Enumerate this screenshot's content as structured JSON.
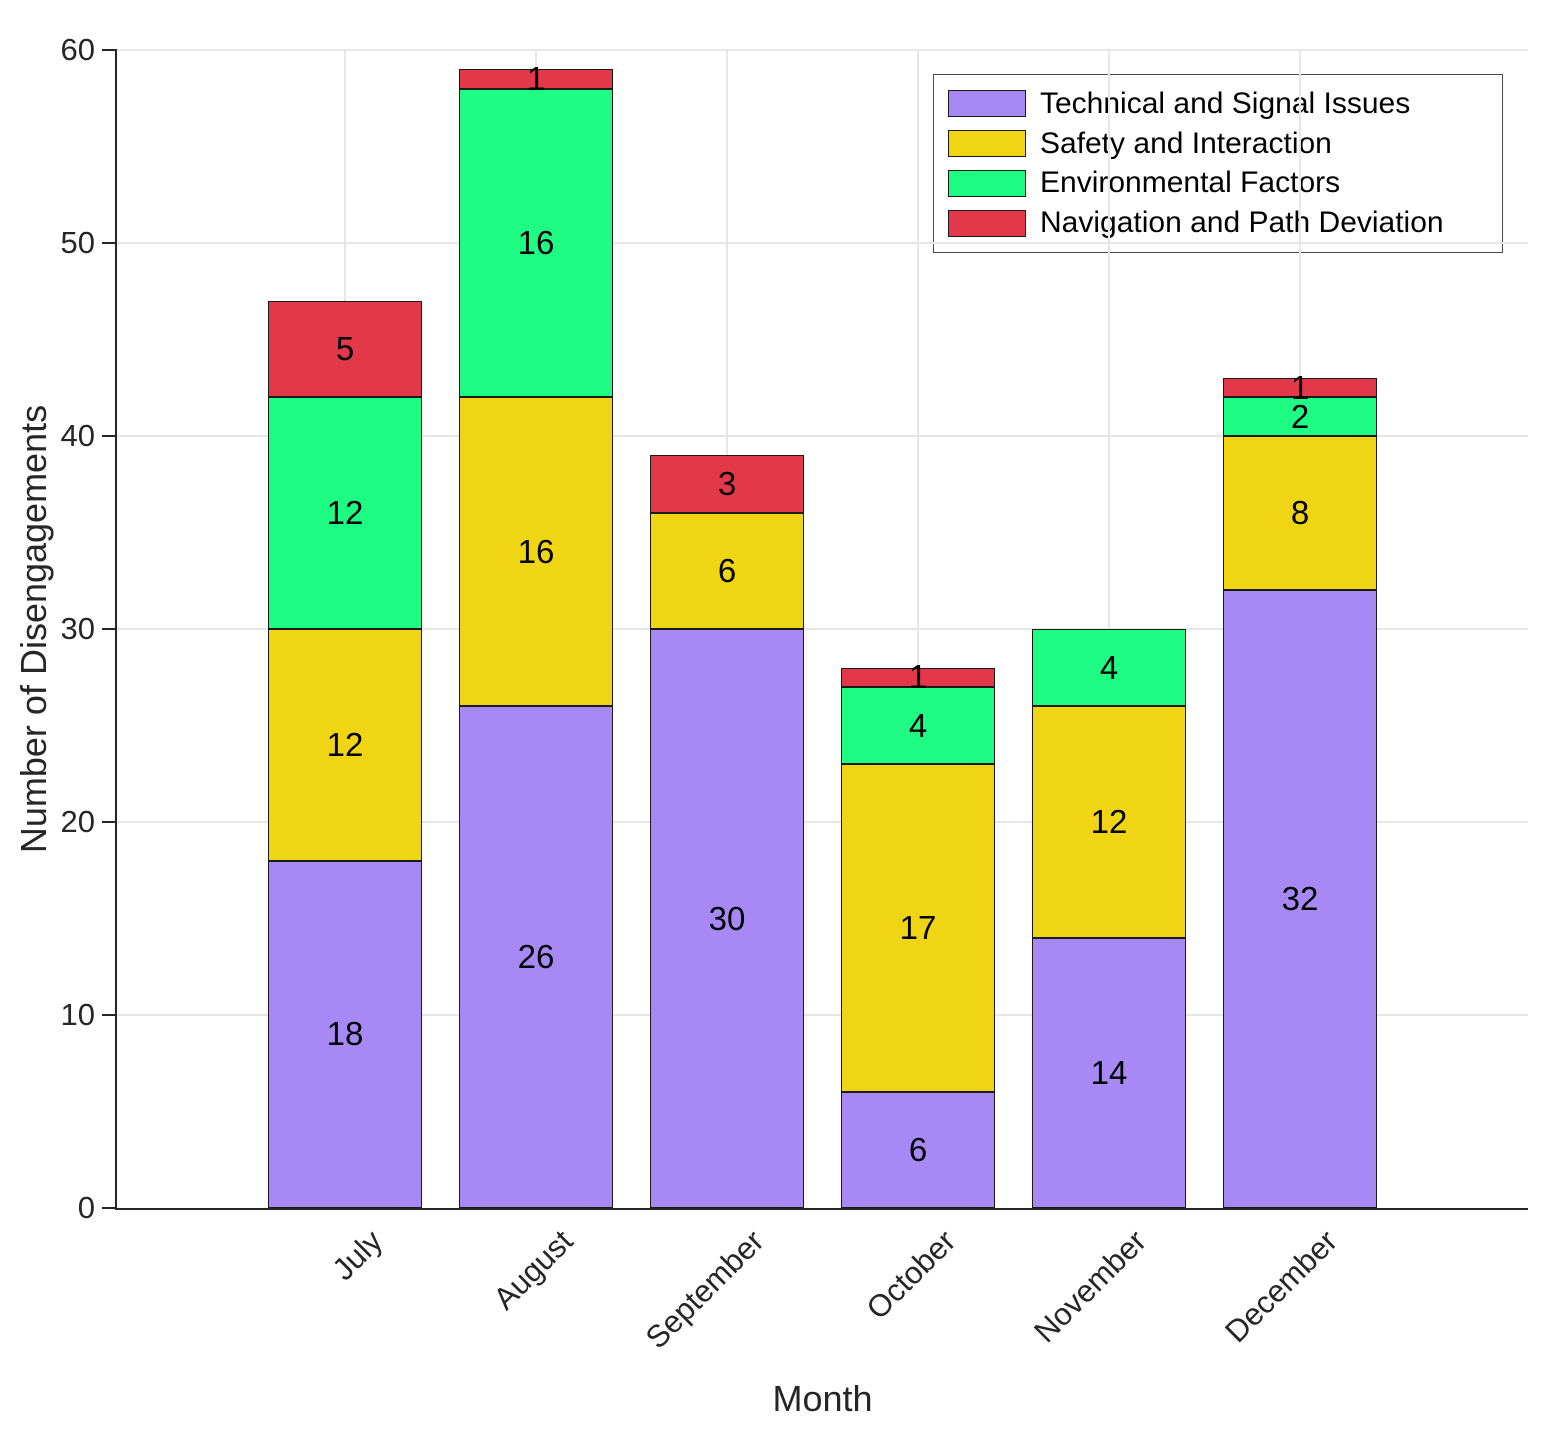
{
  "chart_data": {
    "type": "bar",
    "stacked": true,
    "xlabel": "Month",
    "ylabel": "Number of Disengagements",
    "categories": [
      "July",
      "August",
      "September",
      "October",
      "November",
      "December"
    ],
    "series": [
      {
        "name": "Technical and Signal Issues",
        "color": "#a689f5",
        "values": [
          18,
          26,
          30,
          6,
          14,
          32
        ]
      },
      {
        "name": "Safety and Interaction",
        "color": "#efd513",
        "values": [
          12,
          16,
          6,
          17,
          12,
          8
        ]
      },
      {
        "name": "Environmental Factors",
        "color": "#1ffc84",
        "values": [
          12,
          16,
          0,
          4,
          4,
          2
        ]
      },
      {
        "name": "Navigation and Path Deviation",
        "color": "#e2384a",
        "values": [
          5,
          1,
          3,
          1,
          0,
          1
        ]
      }
    ],
    "ylim": [
      0,
      60
    ],
    "yticks": [
      0,
      10,
      20,
      30,
      40,
      50,
      60
    ],
    "grid": true,
    "legend_position": "top-right",
    "bar_edge_color": "#1a1a1a",
    "grid_color": "#e6e6e6",
    "axis_color": "#262626",
    "label_color": "#000000"
  }
}
